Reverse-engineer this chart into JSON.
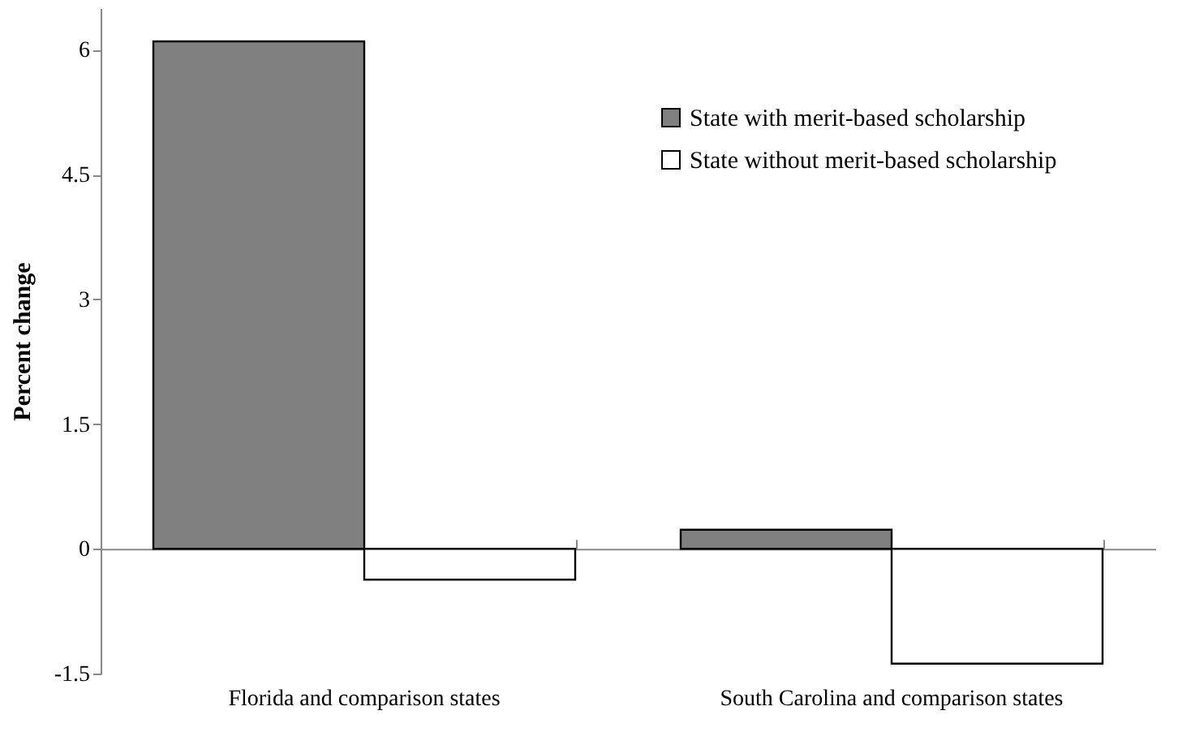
{
  "chart_data": {
    "type": "bar",
    "ylabel": "Percent change",
    "categories": [
      "Florida and comparison states",
      "South Carolina and comparison states"
    ],
    "series": [
      {
        "name": "State with merit-based scholarship",
        "color": "#808080",
        "values": [
          6.1,
          0.23
        ]
      },
      {
        "name": "State without merit-based scholarship",
        "color": "#ffffff",
        "values": [
          -0.37,
          -1.38
        ]
      }
    ],
    "ylim": [
      -1.5,
      6.5
    ],
    "yticks": [
      -1.5,
      0,
      1.5,
      3,
      4.5,
      6
    ],
    "legend": "top right"
  }
}
